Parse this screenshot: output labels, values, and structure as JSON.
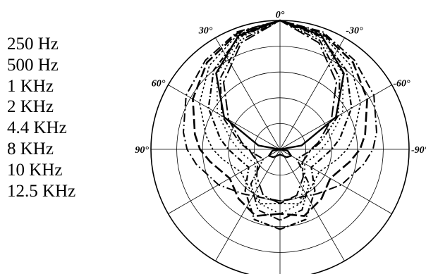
{
  "chart_data": {
    "type": "polar",
    "title": "",
    "angle_labels": [
      {
        "text": "0°",
        "deg": 0
      },
      {
        "text": "-30°",
        "deg": 30
      },
      {
        "text": "30°",
        "deg": -30
      },
      {
        "text": "-60°",
        "deg": 60
      },
      {
        "text": "60°",
        "deg": -60
      },
      {
        "text": "-90°",
        "deg": 90
      },
      {
        "text": "90°",
        "deg": -90
      }
    ],
    "rlim": [
      0,
      1
    ],
    "grid": true,
    "legend_placement": "left",
    "series": [
      {
        "name": "250 Hz",
        "dash": "",
        "width": 2.4,
        "theta": [
          0,
          20,
          40,
          60,
          80,
          90,
          100,
          120,
          140,
          160,
          180
        ],
        "r": [
          1,
          0.94,
          0.77,
          0.5,
          0.17,
          0,
          0.06,
          0.1,
          0.08,
          0.05,
          0.04
        ]
      },
      {
        "name": "500 Hz",
        "dash": "12 4 2 4",
        "width": 2,
        "theta": [
          0,
          20,
          40,
          60,
          80,
          90,
          100,
          120,
          140,
          160,
          180
        ],
        "r": [
          1,
          0.97,
          0.9,
          0.84,
          0.76,
          0.72,
          0.66,
          0.55,
          0.45,
          0.4,
          0.4
        ]
      },
      {
        "name": "1 KHz",
        "dash": "14 5",
        "width": 2.6,
        "theta": [
          0,
          20,
          40,
          60,
          80,
          90,
          100,
          120,
          140,
          160,
          180
        ],
        "r": [
          1,
          0.96,
          0.88,
          0.78,
          0.67,
          0.62,
          0.55,
          0.45,
          0.5,
          0.55,
          0.5
        ]
      },
      {
        "name": "2 KHz",
        "dash": "3 3",
        "width": 1.6,
        "theta": [
          0,
          20,
          40,
          60,
          80,
          90,
          100,
          120,
          140,
          160,
          180
        ],
        "r": [
          1,
          0.95,
          0.85,
          0.72,
          0.58,
          0.52,
          0.45,
          0.35,
          0.38,
          0.45,
          0.42
        ]
      },
      {
        "name": "4.4 KHz",
        "dash": "10 3 2 3 2 3",
        "width": 2,
        "theta": [
          0,
          20,
          40,
          60,
          80,
          90,
          100,
          120,
          140,
          160,
          180
        ],
        "r": [
          1,
          0.9,
          0.72,
          0.52,
          0.32,
          0.25,
          0.2,
          0.15,
          0.35,
          0.5,
          0.55
        ]
      },
      {
        "name": "8 KHz",
        "dash": "8 3 2 3",
        "width": 2.2,
        "theta": [
          0,
          20,
          40,
          60,
          80,
          90,
          100,
          120,
          140,
          160,
          180
        ],
        "r": [
          1,
          0.93,
          0.8,
          0.64,
          0.47,
          0.4,
          0.34,
          0.28,
          0.42,
          0.58,
          0.62
        ]
      },
      {
        "name": "10 KHz",
        "dash": "2 4",
        "width": 1.6,
        "theta": [
          0,
          20,
          40,
          60,
          80,
          90,
          100,
          120,
          140,
          160,
          180
        ],
        "r": [
          1,
          0.92,
          0.76,
          0.56,
          0.38,
          0.32,
          0.28,
          0.22,
          0.3,
          0.45,
          0.5
        ]
      },
      {
        "name": "12.5 KHz",
        "dash": "16 4 3 4",
        "width": 2,
        "theta": [
          0,
          20,
          40,
          60,
          80,
          90,
          100,
          120,
          140,
          160,
          180
        ],
        "r": [
          1,
          0.88,
          0.68,
          0.46,
          0.3,
          0.24,
          0.22,
          0.2,
          0.28,
          0.38,
          0.42
        ]
      }
    ]
  }
}
